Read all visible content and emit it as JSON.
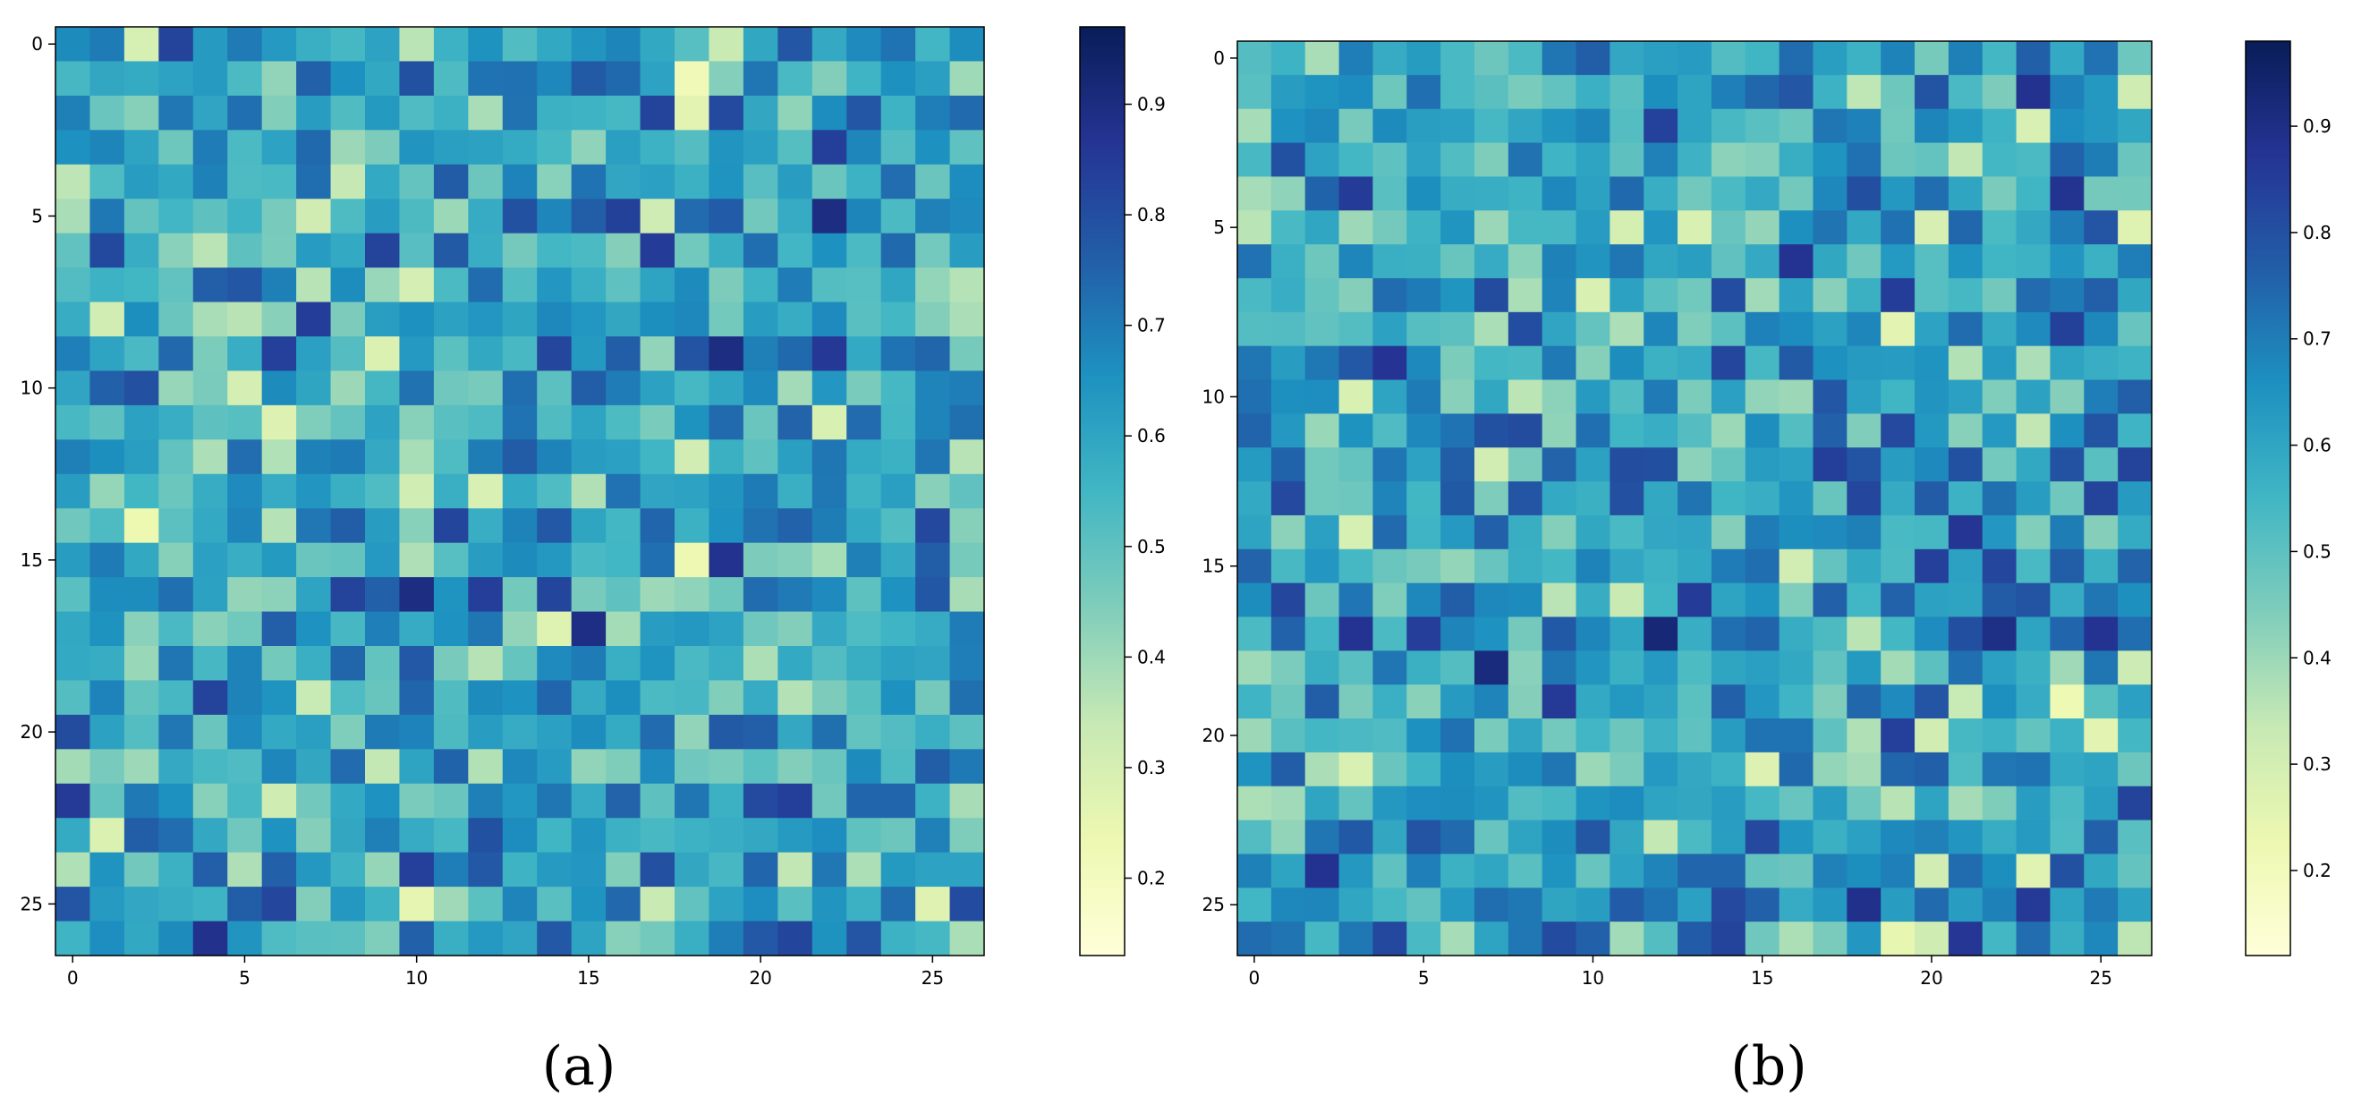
{
  "figure": {
    "colormap": "YlGnBu",
    "colormap_stops": [
      "#ffffd9",
      "#edf8b1",
      "#c7e9b4",
      "#7fcdbb",
      "#41b6c4",
      "#1d91c0",
      "#225ea8",
      "#253494",
      "#081d58"
    ]
  },
  "chart_data": [
    {
      "type": "heatmap",
      "caption": "(a)",
      "grid_size": 27,
      "seed": 7,
      "xlim": [
        0,
        26
      ],
      "ylim": [
        0,
        26
      ],
      "x_ticks": [
        "0",
        "5",
        "10",
        "15",
        "20",
        "25"
      ],
      "y_ticks": [
        "0",
        "5",
        "10",
        "15",
        "20",
        "25"
      ],
      "colorbar": {
        "range": [
          0.13,
          0.97
        ],
        "ticks": [
          "0.2",
          "0.3",
          "0.4",
          "0.5",
          "0.6",
          "0.7",
          "0.8",
          "0.9"
        ],
        "tick_values": [
          0.2,
          0.3,
          0.4,
          0.5,
          0.6,
          0.7,
          0.8,
          0.9
        ]
      }
    },
    {
      "type": "heatmap",
      "caption": "(b)",
      "grid_size": 27,
      "seed": 19,
      "xlim": [
        0,
        26
      ],
      "ylim": [
        0,
        26
      ],
      "x_ticks": [
        "0",
        "5",
        "10",
        "15",
        "20",
        "25"
      ],
      "y_ticks": [
        "0",
        "5",
        "10",
        "15",
        "20",
        "25"
      ],
      "colorbar": {
        "range": [
          0.12,
          0.98
        ],
        "ticks": [
          "0.2",
          "0.3",
          "0.4",
          "0.5",
          "0.6",
          "0.7",
          "0.8",
          "0.9"
        ],
        "tick_values": [
          0.2,
          0.3,
          0.4,
          0.5,
          0.6,
          0.7,
          0.8,
          0.9
        ]
      }
    }
  ]
}
